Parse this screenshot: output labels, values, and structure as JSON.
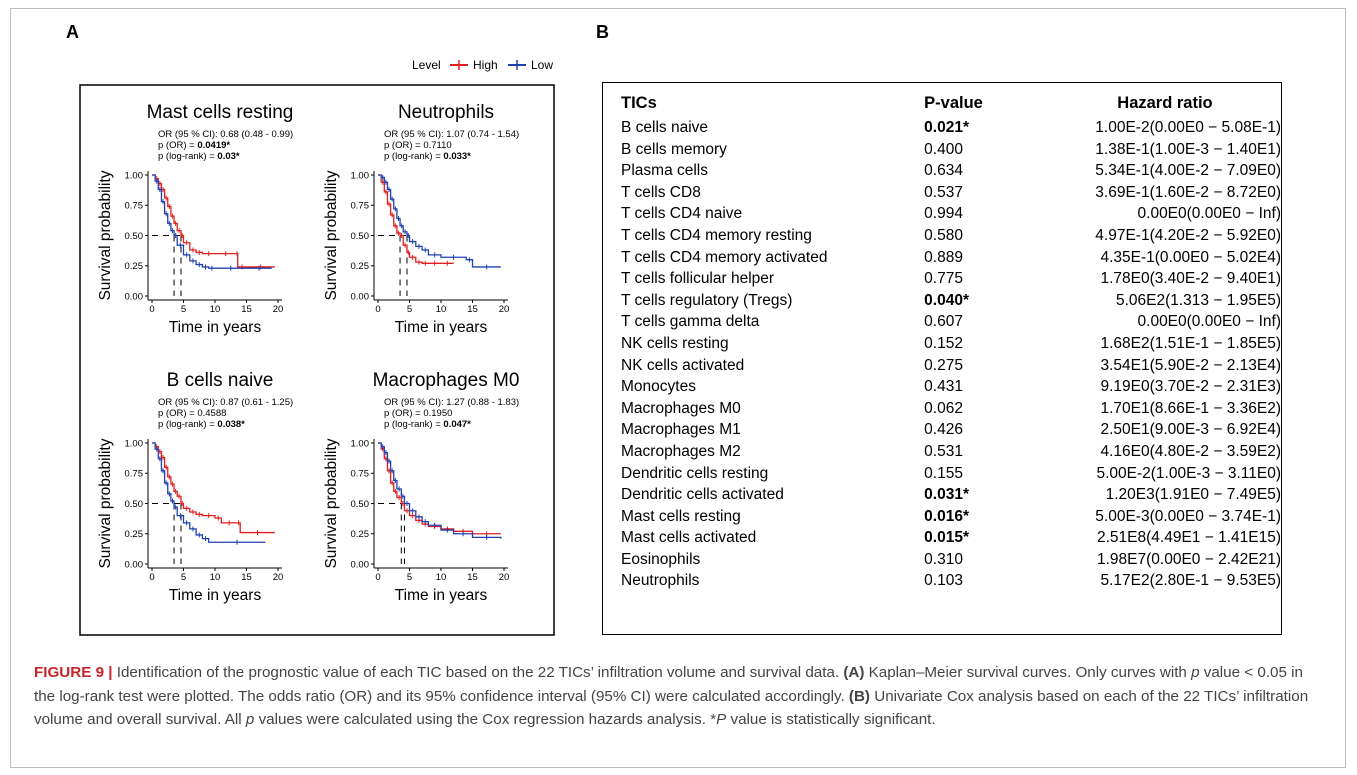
{
  "panel_labels": {
    "a": "A",
    "b": "B"
  },
  "legend": {
    "title": "Level",
    "high": "High",
    "low": "Low",
    "high_color": "#e02020",
    "low_color": "#2040b0"
  },
  "chart_data": [
    {
      "type": "line",
      "title": "Mast cells resting",
      "stats": {
        "or": "OR (95 % CI): 0.68 (0.48 - 0.99)",
        "p_or_prefix": "p (OR) = ",
        "p_or": "0.0419*",
        "p_or_bold": true,
        "p_lr_prefix": "p (log-rank) = ",
        "p_lr": "0.03*"
      },
      "xlabel": "Time in years",
      "ylabel": "Survival probability",
      "xlim": [
        0,
        20
      ],
      "ylim": [
        0,
        1
      ],
      "xticks": [
        "0",
        "5",
        "10",
        "15",
        "20"
      ],
      "yticks": [
        "0.00",
        "0.25",
        "0.50",
        "0.75",
        "1.00"
      ],
      "median_lines": [
        3.5,
        4.6
      ],
      "series": [
        {
          "name": "High",
          "x": [
            0,
            0.5,
            1,
            1.5,
            2,
            2.5,
            3,
            3.5,
            4,
            4.6,
            5,
            6,
            7,
            8,
            10,
            13.4,
            13.6,
            15,
            19.5
          ],
          "y": [
            1,
            0.97,
            0.93,
            0.88,
            0.81,
            0.74,
            0.66,
            0.6,
            0.54,
            0.5,
            0.44,
            0.38,
            0.36,
            0.35,
            0.35,
            0.35,
            0.24,
            0.24,
            0.24
          ]
        },
        {
          "name": "Low",
          "x": [
            0,
            0.5,
            1,
            1.5,
            2,
            2.5,
            3,
            3.5,
            4,
            5,
            6,
            7,
            8,
            9,
            10,
            15,
            19
          ],
          "y": [
            1,
            0.95,
            0.88,
            0.78,
            0.68,
            0.6,
            0.54,
            0.5,
            0.42,
            0.34,
            0.29,
            0.26,
            0.24,
            0.23,
            0.23,
            0.23,
            0.23
          ]
        }
      ]
    },
    {
      "type": "line",
      "title": "Neutrophils",
      "stats": {
        "or": "OR (95 % CI): 1.07 (0.74 - 1.54)",
        "p_or_prefix": "p (OR) = ",
        "p_or": "0.7110",
        "p_or_bold": false,
        "p_lr_prefix": "p (log-rank) = ",
        "p_lr": "0.033*"
      },
      "xlabel": "Time in years",
      "ylabel": "Survival probability",
      "xlim": [
        0,
        20
      ],
      "ylim": [
        0,
        1
      ],
      "xticks": [
        "0",
        "5",
        "10",
        "15",
        "20"
      ],
      "yticks": [
        "0.00",
        "0.25",
        "0.50",
        "0.75",
        "1.00"
      ],
      "median_lines": [
        3.5,
        4.6
      ],
      "series": [
        {
          "name": "High",
          "x": [
            0,
            0.5,
            1,
            1.5,
            2,
            2.5,
            3,
            3.5,
            4,
            4.6,
            5,
            6,
            7,
            8,
            10,
            12
          ],
          "y": [
            1,
            0.94,
            0.86,
            0.76,
            0.67,
            0.58,
            0.52,
            0.5,
            0.42,
            0.36,
            0.32,
            0.28,
            0.27,
            0.27,
            0.27,
            0.27
          ]
        },
        {
          "name": "Low",
          "x": [
            0,
            0.5,
            1,
            1.5,
            2,
            2.5,
            3,
            3.5,
            4,
            4.6,
            5,
            6,
            7,
            8,
            10,
            14,
            15,
            19.5
          ],
          "y": [
            1,
            0.98,
            0.94,
            0.88,
            0.8,
            0.72,
            0.64,
            0.58,
            0.53,
            0.5,
            0.45,
            0.41,
            0.38,
            0.34,
            0.32,
            0.3,
            0.24,
            0.24
          ]
        }
      ]
    },
    {
      "type": "line",
      "title": "B cells naive",
      "stats": {
        "or": "OR (95 % CI): 0.87 (0.61 - 1.25)",
        "p_or_prefix": "p (OR) = ",
        "p_or": "0.4588",
        "p_or_bold": false,
        "p_lr_prefix": "p (log-rank) = ",
        "p_lr": "0.038*"
      },
      "xlabel": "Time in years",
      "ylabel": "Survival probability",
      "xlim": [
        0,
        20
      ],
      "ylim": [
        0,
        1
      ],
      "xticks": [
        "0",
        "5",
        "10",
        "15",
        "20"
      ],
      "yticks": [
        "0.00",
        "0.25",
        "0.50",
        "0.75",
        "1.00"
      ],
      "median_lines": [
        3.5,
        4.6
      ],
      "series": [
        {
          "name": "High",
          "x": [
            0,
            0.5,
            1,
            1.5,
            2,
            2.5,
            3,
            3.5,
            4,
            4.6,
            5,
            6,
            7,
            8,
            10,
            11,
            13.5,
            14,
            19.5
          ],
          "y": [
            1,
            0.97,
            0.93,
            0.88,
            0.8,
            0.72,
            0.66,
            0.6,
            0.56,
            0.5,
            0.46,
            0.43,
            0.41,
            0.4,
            0.38,
            0.34,
            0.34,
            0.26,
            0.26
          ]
        },
        {
          "name": "Low",
          "x": [
            0,
            0.5,
            1,
            1.5,
            2,
            2.5,
            3,
            3.5,
            4,
            5,
            6,
            7,
            8,
            9,
            18
          ],
          "y": [
            1,
            0.95,
            0.87,
            0.77,
            0.67,
            0.58,
            0.52,
            0.47,
            0.4,
            0.34,
            0.29,
            0.24,
            0.21,
            0.18,
            0.18
          ]
        }
      ]
    },
    {
      "type": "line",
      "title": "Macrophages M0",
      "stats": {
        "or": "OR (95 % CI): 1.27 (0.88 - 1.83)",
        "p_or_prefix": "p (OR) = ",
        "p_or": "0.1950",
        "p_or_bold": false,
        "p_lr_prefix": "p (log-rank) = ",
        "p_lr": "0.047*"
      },
      "xlabel": "Time in years",
      "ylabel": "Survival probability",
      "xlim": [
        0,
        20
      ],
      "ylim": [
        0,
        1
      ],
      "xticks": [
        "0",
        "5",
        "10",
        "15",
        "20"
      ],
      "yticks": [
        "0.00",
        "0.25",
        "0.50",
        "0.75",
        "1.00"
      ],
      "median_lines": [
        3.7,
        4.2
      ],
      "series": [
        {
          "name": "High",
          "x": [
            0,
            0.5,
            1,
            1.5,
            2,
            2.5,
            3,
            3.7,
            4.2,
            5,
            6,
            7,
            8,
            10,
            12,
            15,
            19.5
          ],
          "y": [
            1,
            0.95,
            0.87,
            0.77,
            0.67,
            0.6,
            0.55,
            0.5,
            0.44,
            0.4,
            0.36,
            0.33,
            0.31,
            0.29,
            0.27,
            0.25,
            0.25
          ]
        },
        {
          "name": "Low",
          "x": [
            0,
            0.5,
            1,
            1.5,
            2,
            2.5,
            3,
            3.7,
            4.2,
            5,
            6,
            7,
            8,
            10,
            12,
            15,
            19.5
          ],
          "y": [
            1,
            0.97,
            0.92,
            0.85,
            0.77,
            0.69,
            0.62,
            0.56,
            0.5,
            0.44,
            0.39,
            0.35,
            0.32,
            0.28,
            0.25,
            0.22,
            0.21
          ]
        }
      ]
    }
  ],
  "table": {
    "headers": [
      "TICs",
      "P-value",
      "Hazard ratio"
    ],
    "rows": [
      {
        "tic": "B cells naive",
        "p": "0.021*",
        "sig": true,
        "hr": "1.00E-2(0.00E0 − 5.08E-1)"
      },
      {
        "tic": "B cells memory",
        "p": "0.400",
        "sig": false,
        "hr": "1.38E-1(1.00E-3 − 1.40E1)"
      },
      {
        "tic": "Plasma cells",
        "p": "0.634",
        "sig": false,
        "hr": "5.34E-1(4.00E-2 − 7.09E0)"
      },
      {
        "tic": "T cells CD8",
        "p": "0.537",
        "sig": false,
        "hr": "3.69E-1(1.60E-2 − 8.72E0)"
      },
      {
        "tic": "T cells CD4 naive",
        "p": "0.994",
        "sig": false,
        "hr": "0.00E0(0.00E0 − Inf)"
      },
      {
        "tic": "T cells CD4 memory resting",
        "p": "0.580",
        "sig": false,
        "hr": "4.97E-1(4.20E-2 − 5.92E0)"
      },
      {
        "tic": "T cells CD4 memory activated",
        "p": "0.889",
        "sig": false,
        "hr": "4.35E-1(0.00E0 − 5.02E4)"
      },
      {
        "tic": "T cells follicular helper",
        "p": "0.775",
        "sig": false,
        "hr": "1.78E0(3.40E-2 − 9.40E1)"
      },
      {
        "tic": "T cells regulatory (Tregs)",
        "p": "0.040*",
        "sig": true,
        "hr": "5.06E2(1.313 − 1.95E5)"
      },
      {
        "tic": "T cells gamma delta",
        "p": "0.607",
        "sig": false,
        "hr": "0.00E0(0.00E0 − Inf)"
      },
      {
        "tic": "NK cells resting",
        "p": "0.152",
        "sig": false,
        "hr": "1.68E2(1.51E-1 − 1.85E5)"
      },
      {
        "tic": "NK cells activated",
        "p": "0.275",
        "sig": false,
        "hr": "3.54E1(5.90E-2 − 2.13E4)"
      },
      {
        "tic": "Monocytes",
        "p": "0.431",
        "sig": false,
        "hr": "9.19E0(3.70E-2 − 2.31E3)"
      },
      {
        "tic": "Macrophages M0",
        "p": "0.062",
        "sig": false,
        "hr": "1.70E1(8.66E-1 − 3.36E2)"
      },
      {
        "tic": "Macrophages M1",
        "p": "0.426",
        "sig": false,
        "hr": "2.50E1(9.00E-3 − 6.92E4)"
      },
      {
        "tic": "Macrophages M2",
        "p": "0.531",
        "sig": false,
        "hr": "4.16E0(4.80E-2 − 3.59E2)"
      },
      {
        "tic": "Dendritic cells resting",
        "p": "0.155",
        "sig": false,
        "hr": "5.00E-2(1.00E-3 − 3.11E0)"
      },
      {
        "tic": "Dendritic cells activated",
        "p": "0.031*",
        "sig": true,
        "hr": "1.20E3(1.91E0 − 7.49E5)"
      },
      {
        "tic": "Mast cells resting",
        "p": "0.016*",
        "sig": true,
        "hr": "5.00E-3(0.00E0 − 3.74E-1)"
      },
      {
        "tic": "Mast cells activated",
        "p": "0.015*",
        "sig": true,
        "hr": "2.51E8(4.49E1 − 1.41E15)"
      },
      {
        "tic": "Eosinophils",
        "p": "0.310",
        "sig": false,
        "hr": "1.98E7(0.00E0 − 2.42E21)"
      },
      {
        "tic": "Neutrophils",
        "p": "0.103",
        "sig": false,
        "hr": "5.17E2(2.80E-1 − 9.53E5)"
      }
    ]
  },
  "caption": {
    "fig_label": "FIGURE 9 |",
    "parts": [
      {
        "t": " Identification of the prognostic value of each TIC based on the 22 TICs’ infiltration volume and survival data. ",
        "s": "n"
      },
      {
        "t": "(A)",
        "s": "b"
      },
      {
        "t": " Kaplan–Meier survival curves. Only curves with ",
        "s": "n"
      },
      {
        "t": "p",
        "s": "i"
      },
      {
        "t": " value < 0.05 in the log-rank test were plotted. The odds ratio (OR) and its 95% confidence interval (95% CI) were calculated accordingly. ",
        "s": "n"
      },
      {
        "t": "(B)",
        "s": "b"
      },
      {
        "t": " Univariate Cox analysis based on each of the 22 TICs’ infiltration volume and overall survival. All ",
        "s": "n"
      },
      {
        "t": "p",
        "s": "i"
      },
      {
        "t": " values were calculated using the Cox regression hazards analysis. *",
        "s": "n"
      },
      {
        "t": "P",
        "s": "i"
      },
      {
        "t": " value is statistically significant.",
        "s": "n"
      }
    ]
  }
}
